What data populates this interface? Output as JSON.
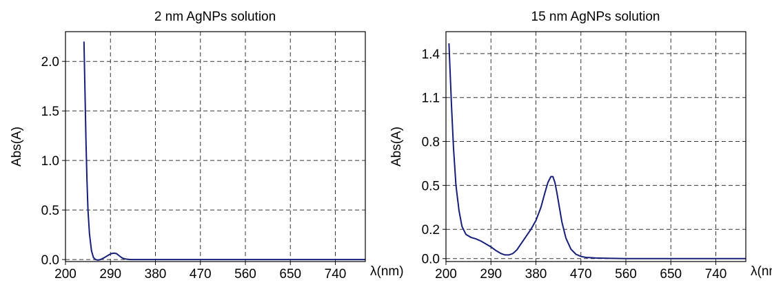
{
  "chart_data": [
    {
      "type": "line",
      "title": "2 nm AgNPs solution",
      "xlabel": "λ(nm)",
      "ylabel": "Abs(A)",
      "xlim": [
        200,
        800
      ],
      "ylim": [
        -0.02,
        2.3
      ],
      "xticks": [
        200,
        290,
        380,
        470,
        560,
        650,
        740
      ],
      "xtick_labels": [
        "200",
        "290",
        "380",
        "470",
        "560",
        "650",
        "740"
      ],
      "yticks": [
        0.0,
        0.5,
        1.0,
        1.5,
        2.0
      ],
      "ytick_labels": [
        "0.0",
        "0.5",
        "1.0",
        "1.5",
        "2.0"
      ],
      "grid": true,
      "series": [
        {
          "color": "#141e78",
          "x": [
            237,
            239,
            241,
            243,
            245,
            248,
            252,
            256,
            260,
            265,
            270,
            278,
            286,
            292,
            297,
            302,
            306,
            310,
            315,
            322,
            330,
            345,
            380,
            470,
            560,
            650,
            740,
            800
          ],
          "y": [
            2.2,
            1.7,
            1.2,
            0.8,
            0.5,
            0.26,
            0.09,
            0.02,
            0.0,
            -0.005,
            0.0,
            0.02,
            0.045,
            0.06,
            0.065,
            0.06,
            0.045,
            0.028,
            0.012,
            0.004,
            0.0,
            0.0,
            0.0,
            0.0,
            0.0,
            0.0,
            0.0,
            0.0
          ]
        }
      ]
    },
    {
      "type": "line",
      "title": "15 nm AgNPs solution",
      "xlabel": "λ(nm)",
      "ylabel": "Abs(A)",
      "xlim": [
        200,
        800
      ],
      "ylim": [
        -0.02,
        1.55
      ],
      "xticks": [
        200,
        290,
        380,
        470,
        560,
        650,
        740
      ],
      "xtick_labels": [
        "200",
        "290",
        "380",
        "470",
        "560",
        "650",
        "740"
      ],
      "yticks": [
        0.0,
        0.2,
        0.5,
        0.8,
        1.1,
        1.4
      ],
      "ytick_labels": [
        "0.0",
        "0.2",
        "0.5",
        "0.8",
        "1.1",
        "1.4"
      ],
      "grid": true,
      "series": [
        {
          "color": "#141e78",
          "x": [
            206,
            208,
            211,
            215,
            220,
            226,
            232,
            240,
            250,
            260,
            270,
            280,
            290,
            300,
            310,
            318,
            326,
            334,
            342,
            350,
            360,
            370,
            380,
            390,
            398,
            404,
            410,
            414,
            418,
            422,
            426,
            432,
            440,
            450,
            460,
            470,
            480,
            500,
            530,
            560,
            650,
            740,
            800
          ],
          "y": [
            1.47,
            1.3,
            1.05,
            0.76,
            0.5,
            0.33,
            0.22,
            0.165,
            0.145,
            0.135,
            0.12,
            0.1,
            0.08,
            0.055,
            0.035,
            0.025,
            0.025,
            0.035,
            0.06,
            0.1,
            0.15,
            0.2,
            0.26,
            0.35,
            0.45,
            0.52,
            0.56,
            0.56,
            0.52,
            0.45,
            0.37,
            0.25,
            0.14,
            0.065,
            0.03,
            0.015,
            0.008,
            0.004,
            0.002,
            0.0,
            0.0,
            0.0,
            0.0
          ]
        }
      ]
    }
  ]
}
